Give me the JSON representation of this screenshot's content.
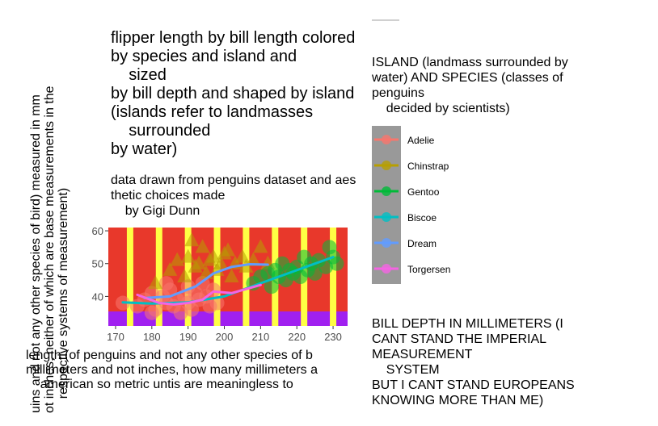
{
  "title": "flipper length by bill length colored\nby species and island and\n    sized\nby bill depth and shaped by island\n(islands refer to landmasses\n    surrounded\nby water)",
  "subtitle": "data drawn from penguins dataset and aes\nthetic choices made\n    by Gigi Dunn",
  "ylabel": "uins and not any other species of bird) measured in mm\not inches, neither of which are base measurements in the\n    respective systems of measurement)",
  "xlabel": "length (of penguins and not any other species of b\nmillimeters and not inches, how many millimeters a\n    american so metric untis are meaningless to",
  "legend": {
    "title": "ISLAND (landmass surrounded by\nwater) AND SPECIES (classes of\npenguins\n    decided by scientists)",
    "items": [
      {
        "label": "Adelie",
        "color": "#F8766D"
      },
      {
        "label": "Chinstrap",
        "color": "#B79F00"
      },
      {
        "label": "Gentoo",
        "color": "#00BA38"
      },
      {
        "label": "Biscoe",
        "color": "#00BFC4"
      },
      {
        "label": "Dream",
        "color": "#619CFF"
      },
      {
        "label": "Torgersen",
        "color": "#F564E3"
      }
    ]
  },
  "size_legend_title": "BILL DEPTH IN MILLIMETERS (I\nCANT STAND THE IMPERIAL\nMEASUREMENT\n    SYSTEM\nBUT I CANT STAND EUROPEANS\nKNOWING MORE THAN ME)",
  "chart_data": {
    "type": "scatter",
    "xlim": [
      168,
      234
    ],
    "ylim": [
      31,
      61
    ],
    "x_ticks": [
      170,
      180,
      190,
      200,
      210,
      220,
      230
    ],
    "y_ticks": [
      40,
      50,
      60
    ],
    "panel_background": "#E8382B",
    "stripe_color": "#FFFF44",
    "stripe_x": [
      174,
      182,
      190,
      198,
      206,
      214,
      222,
      230
    ],
    "bottom_band_color": "#A020F0",
    "series": [
      {
        "name": "Adelie",
        "color": "#F8766D",
        "points": [
          [
            172,
            38
          ],
          [
            176,
            37
          ],
          [
            178,
            39
          ],
          [
            180,
            41
          ],
          [
            181,
            36
          ],
          [
            183,
            40
          ],
          [
            184,
            38
          ],
          [
            185,
            42
          ],
          [
            186,
            37
          ],
          [
            187,
            39
          ],
          [
            189,
            40
          ],
          [
            190,
            38
          ],
          [
            190,
            43
          ],
          [
            191,
            36
          ],
          [
            192,
            41
          ],
          [
            193,
            39
          ],
          [
            195,
            40
          ],
          [
            196,
            37
          ],
          [
            197,
            42
          ],
          [
            198,
            38
          ],
          [
            180,
            35
          ],
          [
            184,
            44
          ],
          [
            188,
            35
          ],
          [
            194,
            44
          ]
        ]
      },
      {
        "name": "Chinstrap",
        "color": "#B79F00",
        "points": [
          [
            181,
            44
          ],
          [
            185,
            48
          ],
          [
            187,
            51
          ],
          [
            189,
            46
          ],
          [
            190,
            52
          ],
          [
            191,
            57
          ],
          [
            192,
            49
          ],
          [
            193,
            50
          ],
          [
            194,
            55
          ],
          [
            195,
            47
          ],
          [
            196,
            51
          ],
          [
            197,
            52
          ],
          [
            198,
            48
          ],
          [
            199,
            50
          ],
          [
            200,
            53
          ],
          [
            201,
            54
          ],
          [
            202,
            46
          ],
          [
            203,
            50
          ],
          [
            205,
            52
          ],
          [
            206,
            49
          ],
          [
            208,
            51
          ],
          [
            210,
            55
          ],
          [
            212,
            50
          ]
        ]
      },
      {
        "name": "Gentoo",
        "color": "#00BA38",
        "points": [
          [
            208,
            44
          ],
          [
            210,
            46
          ],
          [
            212,
            47
          ],
          [
            213,
            43
          ],
          [
            214,
            48
          ],
          [
            215,
            46
          ],
          [
            216,
            50
          ],
          [
            217,
            45
          ],
          [
            218,
            48
          ],
          [
            219,
            47
          ],
          [
            220,
            49
          ],
          [
            221,
            46
          ],
          [
            222,
            52
          ],
          [
            223,
            48
          ],
          [
            224,
            50
          ],
          [
            225,
            47
          ],
          [
            226,
            51
          ],
          [
            228,
            49
          ],
          [
            229,
            55
          ],
          [
            230,
            52
          ],
          [
            231,
            50
          ]
        ]
      }
    ],
    "trend_lines": [
      {
        "name": "Biscoe",
        "color": "#00BFC4",
        "points": [
          [
            172,
            38.2
          ],
          [
            180,
            37.8
          ],
          [
            190,
            38.2
          ],
          [
            200,
            40
          ],
          [
            210,
            44
          ],
          [
            220,
            48
          ],
          [
            230,
            52
          ]
        ]
      },
      {
        "name": "Dream",
        "color": "#619CFF",
        "points": [
          [
            178,
            39.5
          ],
          [
            185,
            40
          ],
          [
            192,
            43
          ],
          [
            197,
            47
          ],
          [
            202,
            49
          ],
          [
            207,
            49.8
          ],
          [
            212,
            49.7
          ]
        ]
      },
      {
        "name": "Torgersen",
        "color": "#F564E3",
        "points": [
          [
            176,
            40.5
          ],
          [
            182,
            38
          ],
          [
            186,
            37.6
          ],
          [
            190,
            38
          ],
          [
            194,
            39
          ],
          [
            197,
            41.5
          ],
          [
            202,
            41
          ],
          [
            210,
            43.5
          ]
        ]
      }
    ]
  }
}
